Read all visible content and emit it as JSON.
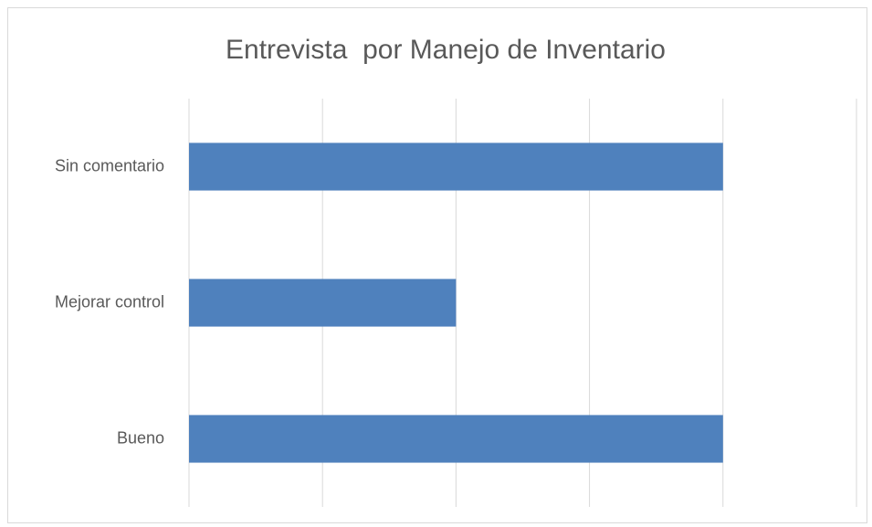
{
  "chart_data": {
    "type": "bar",
    "orientation": "horizontal",
    "title": "Entrevista  por Manejo de Inventario",
    "categories": [
      "Sin comentario",
      "Mejorar control",
      "Bueno"
    ],
    "values": [
      4,
      2,
      4
    ],
    "color": "#4f81bd",
    "xlim": [
      0,
      5
    ],
    "xticks": [
      0,
      1,
      2,
      3,
      4,
      5
    ],
    "grid": true
  }
}
